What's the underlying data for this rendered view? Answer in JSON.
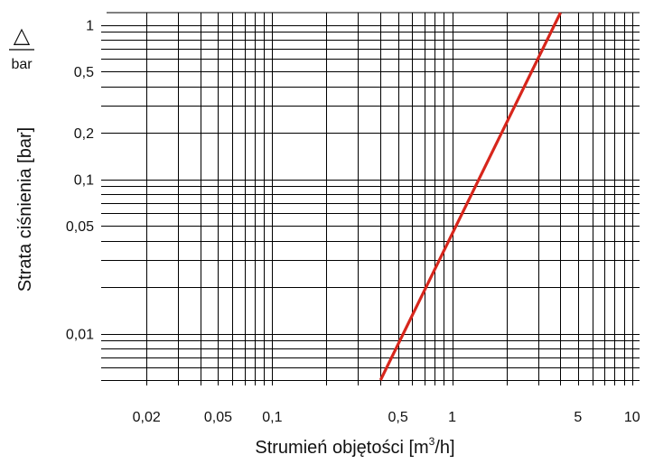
{
  "chart_data": {
    "type": "line",
    "title": "",
    "xlabel": "Strumień objętości [m",
    "xlabel_sup": "3",
    "xlabel_suffix": "/h]",
    "ylabel": "Strata ciśnienia [bar]",
    "y_unit_symbol": "△",
    "y_unit_label": "bar",
    "x_scale": "log",
    "y_scale": "log",
    "xlim": [
      0.012,
      11
    ],
    "ylim": [
      0.005,
      1.2
    ],
    "grid": true,
    "legend": "none",
    "x_tick_labels": [
      {
        "value": 0.02,
        "label": "0,02"
      },
      {
        "value": 0.05,
        "label": "0,05"
      },
      {
        "value": 0.1,
        "label": "0,1"
      },
      {
        "value": 0.5,
        "label": "0,5"
      },
      {
        "value": 1,
        "label": "1"
      },
      {
        "value": 5,
        "label": "5"
      },
      {
        "value": 10,
        "label": "10"
      }
    ],
    "y_tick_labels": [
      {
        "value": 1,
        "label": "1"
      },
      {
        "value": 0.5,
        "label": "0,5"
      },
      {
        "value": 0.2,
        "label": "0,2"
      },
      {
        "value": 0.1,
        "label": "0,1"
      },
      {
        "value": 0.05,
        "label": "0,05"
      },
      {
        "value": 0.01,
        "label": "0,01"
      }
    ],
    "series": [
      {
        "color": "#d7261c",
        "x": [
          0.4,
          4
        ],
        "y": [
          0.005,
          1.2
        ]
      }
    ]
  }
}
